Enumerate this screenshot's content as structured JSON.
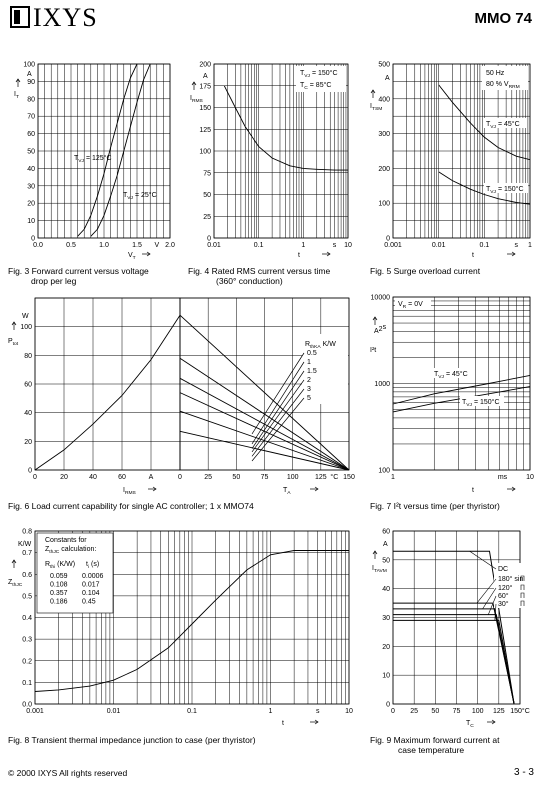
{
  "header": {
    "brand": "IXYS",
    "part": "MMO 74"
  },
  "footer": {
    "copyright": "© 2000 IXYS All rights reserved",
    "page": "3 - 3"
  },
  "captions": {
    "fig3": [
      "Fig. 3 Forward current versus voltage",
      "drop per leg"
    ],
    "fig4": [
      "Fig. 4 Rated RMS current versus time",
      "(360° conduction)"
    ],
    "fig5": [
      "Fig. 5 Surge overload current"
    ],
    "fig6": [
      "Fig. 6 Load current capability for single AC controller; 1 x MMO74"
    ],
    "fig7": [
      "Fig. 7 I²t versus time (per thyristor)"
    ],
    "fig8": [
      "Fig. 8 Transient thermal impedance junction to case (per thyristor)"
    ],
    "fig9": [
      "Fig. 9 Maximum forward current at",
      "case temperature"
    ]
  },
  "chart_data": [
    {
      "id": "fig3",
      "type": "line",
      "xlim": [
        0,
        2
      ],
      "ylim": [
        0,
        100
      ],
      "x_ticks": [
        "0.0",
        "0.5",
        "1.0",
        "1.5",
        "V",
        "2.0"
      ],
      "y_ticks": [
        "0",
        "10",
        "20",
        "30",
        "40",
        "50",
        "60",
        "70",
        "80",
        "90",
        "100"
      ],
      "xlabel": "V_T",
      "ylabel": "I_T",
      "y_unit": "A",
      "series": [
        {
          "name": "T_VJ = 125°C",
          "x": [
            0.6,
            0.7,
            0.8,
            0.9,
            1.0,
            1.1,
            1.2,
            1.3,
            1.4,
            1.5
          ],
          "y": [
            1,
            5,
            13,
            24,
            37,
            52,
            66,
            80,
            92,
            100
          ]
        },
        {
          "name": "T_VJ = 25°C",
          "x": [
            0.8,
            0.9,
            1.0,
            1.1,
            1.2,
            1.3,
            1.4,
            1.5,
            1.6,
            1.7
          ],
          "y": [
            1,
            5,
            13,
            24,
            36,
            50,
            64,
            78,
            91,
            100
          ]
        }
      ]
    },
    {
      "id": "fig4",
      "type": "line",
      "xscale": "log",
      "xlim": [
        0.01,
        10
      ],
      "ylim": [
        0,
        200
      ],
      "x_ticks": [
        "0.01",
        "0.1",
        "1",
        "s",
        "10"
      ],
      "y_ticks": [
        "0",
        "25",
        "50",
        "75",
        "100",
        "125",
        "150",
        "175",
        "200"
      ],
      "xlabel": "t",
      "ylabel": "I_RMS",
      "y_unit": "A",
      "annotation": [
        "T_VJ = 150°C",
        "T_C = 85°C"
      ],
      "series": [
        {
          "x": [
            0.017,
            0.03,
            0.05,
            0.1,
            0.2,
            0.5,
            1,
            2,
            5,
            10
          ],
          "y": [
            175,
            150,
            128,
            105,
            92,
            83,
            80,
            79,
            78,
            78
          ]
        }
      ]
    },
    {
      "id": "fig5",
      "type": "line",
      "xscale": "log",
      "xlim": [
        0.001,
        1
      ],
      "ylim": [
        0,
        500
      ],
      "x_ticks": [
        "0.001",
        "0.01",
        "0.1",
        "s",
        "1"
      ],
      "y_ticks": [
        "0",
        "100",
        "200",
        "300",
        "400",
        "500"
      ],
      "xlabel": "t",
      "ylabel": "I_TSM",
      "y_unit": "A",
      "annotation": [
        "50 Hz",
        "80 % V_RRM"
      ],
      "series": [
        {
          "name": "T_VJ = 45°C",
          "x": [
            0.01,
            0.02,
            0.05,
            0.1,
            0.2,
            0.5,
            1
          ],
          "y": [
            440,
            390,
            330,
            290,
            260,
            235,
            225
          ]
        },
        {
          "name": "T_VJ = 150°C",
          "x": [
            0.01,
            0.02,
            0.05,
            0.1,
            0.2,
            0.5,
            1
          ],
          "y": [
            190,
            165,
            140,
            125,
            113,
            102,
            97
          ]
        }
      ]
    },
    {
      "id": "fig6a",
      "type": "line",
      "xlim": [
        0,
        100
      ],
      "ylim": [
        0,
        120
      ],
      "x_ticks": [
        "0",
        "20",
        "40",
        "60",
        "A"
      ],
      "y_ticks": [
        "0",
        "20",
        "40",
        "60",
        "80",
        "100"
      ],
      "xlabel": "I_RMS",
      "ylabel": "P_tot",
      "y_unit": "W",
      "series": [
        {
          "x": [
            0,
            20,
            40,
            60,
            80,
            100
          ],
          "y": [
            0,
            14,
            32,
            52,
            77,
            108
          ]
        }
      ]
    },
    {
      "id": "fig6b",
      "type": "line",
      "xlim": [
        0,
        150
      ],
      "ylim": [
        0,
        120
      ],
      "x_ticks": [
        "0",
        "25",
        "50",
        "75",
        "100",
        "125",
        "°C",
        "150"
      ],
      "xlabel": "T_A",
      "legend_title": "R_thKA K/W",
      "series": [
        {
          "name": "0.5",
          "x": [
            0,
            150
          ],
          "y": [
            108,
            0
          ]
        },
        {
          "name": "1",
          "x": [
            0,
            150
          ],
          "y": [
            78,
            0
          ]
        },
        {
          "name": "1.5",
          "x": [
            0,
            150
          ],
          "y": [
            64,
            0
          ]
        },
        {
          "name": "2",
          "x": [
            0,
            150
          ],
          "y": [
            54,
            0
          ]
        },
        {
          "name": "3",
          "x": [
            0,
            150
          ],
          "y": [
            41,
            0
          ]
        },
        {
          "name": "5",
          "x": [
            0,
            150
          ],
          "y": [
            27,
            0
          ]
        }
      ]
    },
    {
      "id": "fig7",
      "type": "line",
      "xscale": "log",
      "yscale": "log",
      "xlim": [
        1,
        10
      ],
      "ylim": [
        100,
        10000
      ],
      "x_ticks": [
        "1",
        "ms",
        "10"
      ],
      "y_ticks": [
        "100",
        "1000",
        "10000"
      ],
      "xlabel": "t",
      "ylabel": "I²t",
      "y_unit": "A²s",
      "annotation": [
        "V_R = 0V"
      ],
      "series": [
        {
          "name": "T_VJ = 45°C",
          "x": [
            1,
            2,
            5,
            10
          ],
          "y": [
            580,
            760,
            1000,
            1240
          ]
        },
        {
          "name": "T_VJ = 150°C",
          "x": [
            1,
            2,
            5,
            10
          ],
          "y": [
            470,
            590,
            760,
            920
          ]
        }
      ]
    },
    {
      "id": "fig8",
      "type": "line",
      "xscale": "log",
      "xlim": [
        0.001,
        10
      ],
      "ylim": [
        0,
        0.8
      ],
      "x_ticks": [
        "0.001",
        "0.01",
        "0.1",
        "1",
        "s",
        "10"
      ],
      "y_ticks": [
        "0.0",
        "0.1",
        "0.2",
        "0.3",
        "0.4",
        "0.5",
        "0.6",
        "0.7",
        "0.8"
      ],
      "xlabel": "t",
      "ylabel": "Z_thJC",
      "y_unit": "K/W",
      "table": {
        "title": [
          "Constants for",
          "Z_thJC calculation:"
        ],
        "header": [
          "R_thi (K/W)",
          "t_i (s)"
        ],
        "rows": [
          [
            "0.059",
            "0.0006"
          ],
          [
            "0.108",
            "0.017"
          ],
          [
            "0.357",
            "0.104"
          ],
          [
            "0.186",
            "0.45"
          ]
        ]
      },
      "series": [
        {
          "x": [
            0.001,
            0.002,
            0.005,
            0.01,
            0.02,
            0.05,
            0.1,
            0.2,
            0.5,
            1,
            2,
            5,
            10
          ],
          "y": [
            0.058,
            0.065,
            0.083,
            0.11,
            0.16,
            0.26,
            0.37,
            0.48,
            0.62,
            0.69,
            0.71,
            0.71,
            0.71
          ]
        }
      ]
    },
    {
      "id": "fig9",
      "type": "line",
      "xlim": [
        0,
        150
      ],
      "ylim": [
        0,
        60
      ],
      "x_ticks": [
        "0",
        "25",
        "50",
        "75",
        "100",
        "125",
        "150°C"
      ],
      "y_ticks": [
        "0",
        "10",
        "20",
        "30",
        "40",
        "50",
        "60"
      ],
      "xlabel": "T_C",
      "ylabel": "I_TAVM",
      "y_unit": "A",
      "series": [
        {
          "name": "DC",
          "x": [
            0,
            114,
            143
          ],
          "y": [
            53,
            53,
            0
          ]
        },
        {
          "name": "180° sin",
          "x": [
            0,
            118,
            143
          ],
          "y": [
            35,
            35,
            0
          ]
        },
        {
          "name": "120°",
          "x": [
            0,
            120,
            143
          ],
          "y": [
            33,
            33,
            0
          ]
        },
        {
          "name": "60°",
          "x": [
            0,
            122,
            143
          ],
          "y": [
            31,
            31,
            0
          ]
        },
        {
          "name": "30°",
          "x": [
            0,
            125,
            143
          ],
          "y": [
            29,
            29,
            0
          ]
        }
      ]
    }
  ]
}
